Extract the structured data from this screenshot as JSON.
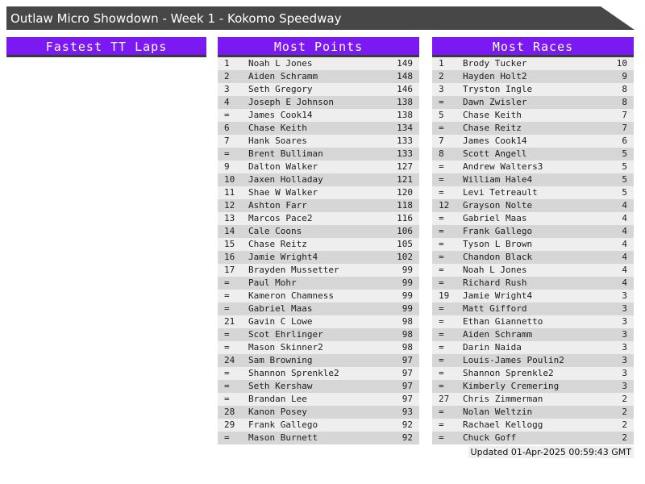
{
  "title_bar": {
    "title": "Outlaw Micro Showdown - Week 1 - Kokomo Speedway"
  },
  "colors": {
    "accent": "#7b19f2",
    "titlebar": "#474747",
    "row-light": "#eeeeee",
    "row-dark": "#d6d6d6",
    "header-border": "#3a3a3a",
    "row-text": "#1c1c1c",
    "footer-bg": "#efefef"
  },
  "sections": [
    {
      "id": "fastest-tt-laps",
      "header": "Fastest TT Laps",
      "rows": []
    },
    {
      "id": "most-points",
      "header": "Most Points",
      "rows": [
        [
          "1",
          "Noah L Jones",
          "149"
        ],
        [
          "2",
          "Aiden Schramm",
          "148"
        ],
        [
          "3",
          "Seth Gregory",
          "146"
        ],
        [
          "4",
          "Joseph E Johnson",
          "138"
        ],
        [
          "=",
          "James Cook14",
          "138"
        ],
        [
          "6",
          "Chase Keith",
          "134"
        ],
        [
          "7",
          "Hank Soares",
          "133"
        ],
        [
          "=",
          "Brent Bulliman",
          "133"
        ],
        [
          "9",
          "Dalton Walker",
          "127"
        ],
        [
          "10",
          "Jaxen Holladay",
          "121"
        ],
        [
          "11",
          "Shae W Walker",
          "120"
        ],
        [
          "12",
          "Ashton Farr",
          "118"
        ],
        [
          "13",
          "Marcos Pace2",
          "116"
        ],
        [
          "14",
          "Cale Coons",
          "106"
        ],
        [
          "15",
          "Chase Reitz",
          "105"
        ],
        [
          "16",
          "Jamie Wright4",
          "102"
        ],
        [
          "17",
          "Brayden Mussetter",
          "99"
        ],
        [
          "=",
          "Paul Mohr",
          "99"
        ],
        [
          "=",
          "Kameron Chamness",
          "99"
        ],
        [
          "=",
          "Gabriel Maas",
          "99"
        ],
        [
          "21",
          "Gavin C Lowe",
          "98"
        ],
        [
          "=",
          "Scot Ehrlinger",
          "98"
        ],
        [
          "=",
          "Mason Skinner2",
          "98"
        ],
        [
          "24",
          "Sam Browning",
          "97"
        ],
        [
          "=",
          "Shannon Sprenkle2",
          "97"
        ],
        [
          "=",
          "Seth Kershaw",
          "97"
        ],
        [
          "=",
          "Brandan Lee",
          "97"
        ],
        [
          "28",
          "Kanon Posey",
          "93"
        ],
        [
          "29",
          "Frank Gallego",
          "92"
        ],
        [
          "=",
          "Mason Burnett",
          "92"
        ]
      ]
    },
    {
      "id": "most-races",
      "header": "Most Races",
      "rows": [
        [
          "1",
          "Brody Tucker",
          "10"
        ],
        [
          "2",
          "Hayden Holt2",
          "9"
        ],
        [
          "3",
          "Tryston Ingle",
          "8"
        ],
        [
          "=",
          "Dawn Zwisler",
          "8"
        ],
        [
          "5",
          "Chase Keith",
          "7"
        ],
        [
          "=",
          "Chase Reitz",
          "7"
        ],
        [
          "7",
          "James Cook14",
          "6"
        ],
        [
          "8",
          "Scott Angell",
          "5"
        ],
        [
          "=",
          "Andrew Walters3",
          "5"
        ],
        [
          "=",
          "William Hale4",
          "5"
        ],
        [
          "=",
          "Levi Tetreault",
          "5"
        ],
        [
          "12",
          "Grayson Nolte",
          "4"
        ],
        [
          "=",
          "Gabriel Maas",
          "4"
        ],
        [
          "=",
          "Frank Gallego",
          "4"
        ],
        [
          "=",
          "Tyson L Brown",
          "4"
        ],
        [
          "=",
          "Chandon Black",
          "4"
        ],
        [
          "=",
          "Noah L Jones",
          "4"
        ],
        [
          "=",
          "Richard Rush",
          "4"
        ],
        [
          "19",
          "Jamie Wright4",
          "3"
        ],
        [
          "=",
          "Matt Gifford",
          "3"
        ],
        [
          "=",
          "Ethan Giannetto",
          "3"
        ],
        [
          "=",
          "Aiden Schramm",
          "3"
        ],
        [
          "=",
          "Darin Naida",
          "3"
        ],
        [
          "=",
          "Louis-James Poulin2",
          "3"
        ],
        [
          "=",
          "Shannon Sprenkle2",
          "3"
        ],
        [
          "=",
          "Kimberly Cremering",
          "3"
        ],
        [
          "27",
          "Chris Zimmerman",
          "2"
        ],
        [
          "=",
          "Nolan Weltzin",
          "2"
        ],
        [
          "=",
          "Rachael Kellogg",
          "2"
        ],
        [
          "=",
          "Chuck Goff",
          "2"
        ]
      ]
    }
  ],
  "footer": {
    "updated": "Updated 01-Apr-2025 00:59:43 GMT"
  }
}
